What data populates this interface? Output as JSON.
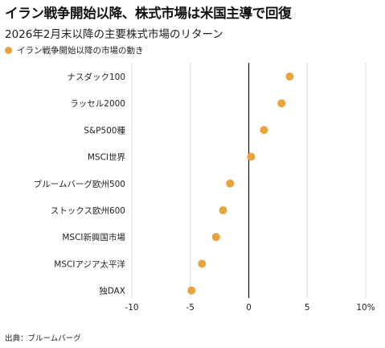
{
  "header": {
    "title": "イラン戦争開始以降、株式市場は米国主導で回復",
    "subtitle": "2026年2月末以降の主要株式市場のリターン"
  },
  "legend": {
    "label": "イラン戦争開始以降の市場の動き"
  },
  "source": "出典：ブルームバーグ",
  "colors": {
    "dot": "#E8A33D",
    "grid": "#d9d9d9",
    "zero_line": "#111111"
  },
  "chart_data": {
    "type": "scatter",
    "title": "イラン戦争開始以降、株式市場は米国主導で回復",
    "subtitle": "2026年2月末以降の主要株式市場のリターン",
    "categories": [
      "ナスダック100",
      "ラッセル2000",
      "S&P500種",
      "MSCI世界",
      "ブルームバーグ欧州500",
      "ストックス欧州600",
      "MSCI新興国市場",
      "MSCIアジア太平洋",
      "独DAX"
    ],
    "series": [
      {
        "name": "イラン戦争開始以降の市場の動き",
        "values": [
          3.5,
          2.8,
          1.3,
          0.2,
          -1.6,
          -2.2,
          -2.8,
          -4.0,
          -4.9
        ]
      }
    ],
    "xlim": [
      -10,
      10
    ],
    "xticks": [
      "-10",
      "-5",
      "0",
      "5",
      "10%"
    ],
    "xlabel": "",
    "ylabel": "",
    "grid": true,
    "legend_position": "top-left"
  }
}
